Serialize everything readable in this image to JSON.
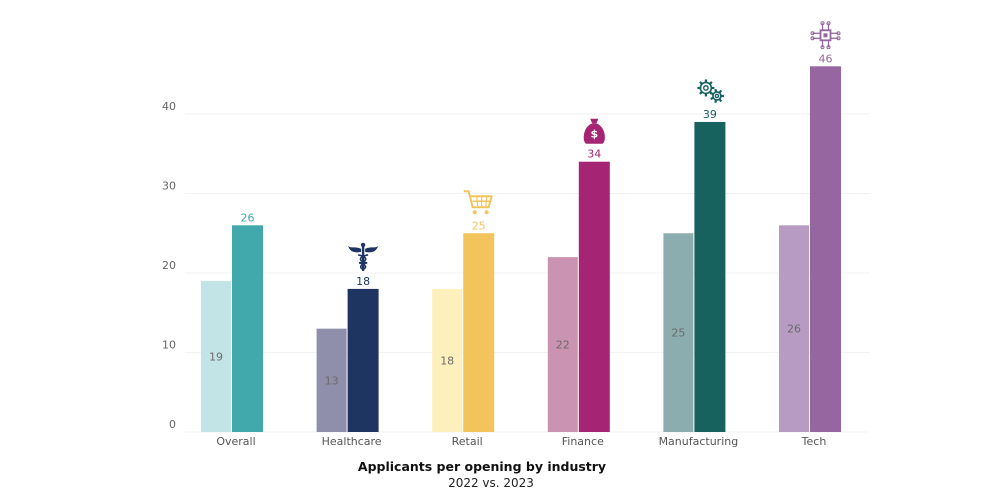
{
  "chart_data": {
    "type": "bar",
    "title": "Applicants per opening by industry",
    "subtitle": "2022 vs. 2023",
    "xlabel": "",
    "ylabel": "",
    "ylim": [
      0,
      46
    ],
    "yticks": [
      0,
      10,
      20,
      30,
      40
    ],
    "grid": true,
    "legend": "none",
    "categories": [
      "Overall",
      "Healthcare",
      "Retail",
      "Finance",
      "Manufacturing",
      "Tech"
    ],
    "series": [
      {
        "values": [
          19,
          13,
          18,
          22,
          25,
          26
        ]
      },
      {
        "values": [
          26,
          18,
          25,
          34,
          39,
          46
        ]
      }
    ],
    "colors": {
      "light": [
        "#c3e4e7",
        "#8f8fab",
        "#fdf0bc",
        "#ca93b1",
        "#8badb0",
        "#b89bc3"
      ],
      "dark": [
        "#41a8ac",
        "#1e3561",
        "#f4c45c",
        "#a52474",
        "#17615f",
        "#9566a0"
      ]
    },
    "icons": [
      "",
      "caduceus-icon",
      "shopping-cart-icon",
      "money-bag-icon",
      "gears-icon",
      "circuit-chip-icon"
    ]
  }
}
